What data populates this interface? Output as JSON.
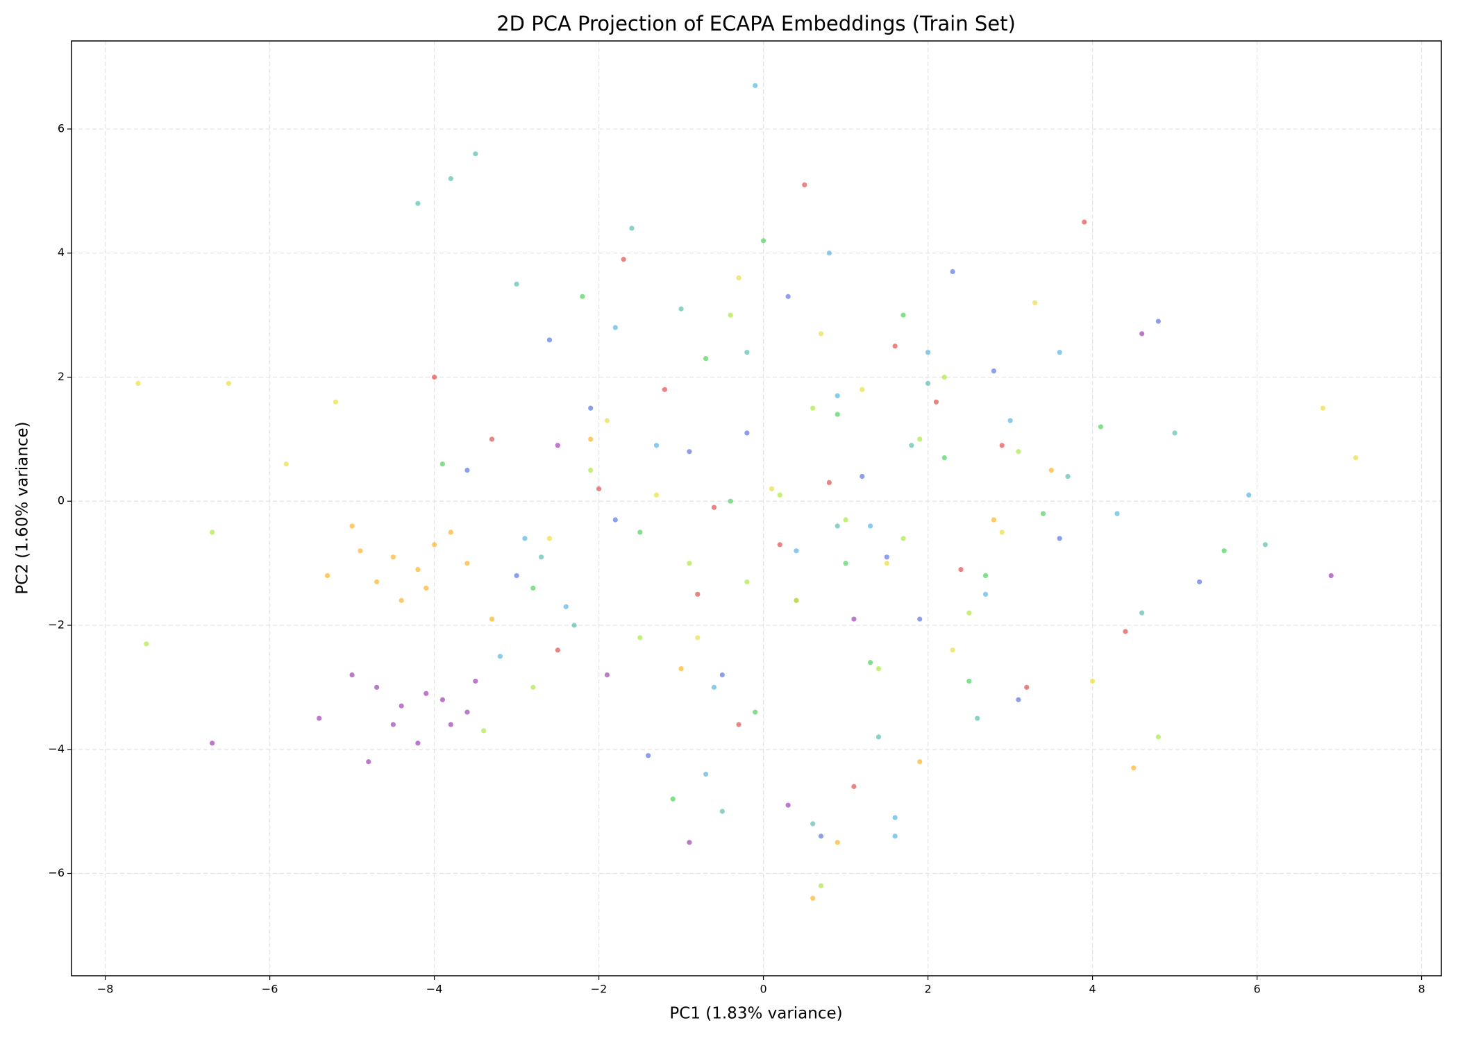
{
  "chart_data": {
    "type": "scatter",
    "title": "2D PCA Projection of ECAPA Embeddings (Train Set)",
    "x_label": "PC1 (1.83% variance)",
    "y_label": "PC2 (1.60% variance)",
    "xlim": [
      -8.41,
      8.24
    ],
    "ylim": [
      -7.65,
      7.42
    ],
    "xticks": [
      {
        "value": -8,
        "label": "−8"
      },
      {
        "value": -6,
        "label": "−6"
      },
      {
        "value": -4,
        "label": "−4"
      },
      {
        "value": -2,
        "label": "−2"
      },
      0,
      2,
      4,
      6,
      8
    ],
    "yticks": [
      {
        "value": -6,
        "label": "−6"
      },
      {
        "value": -4,
        "label": "−4"
      },
      {
        "value": -2,
        "label": "−2"
      },
      0,
      2,
      4,
      6
    ],
    "grid": true,
    "series": [
      {
        "color": "#3f5fe0",
        "x": [
          -2.1,
          -0.5,
          1.2,
          2.8,
          -3.0,
          0.3,
          -1.4,
          3.6,
          4.8,
          -0.9,
          1.9,
          -2.6,
          0.7,
          5.3,
          -1.8,
          2.3,
          -0.2,
          3.1,
          -3.6,
          1.5
        ],
        "y": [
          1.5,
          -2.8,
          0.4,
          2.1,
          -1.2,
          3.3,
          -4.1,
          -0.6,
          2.9,
          0.8,
          -1.9,
          2.6,
          -5.4,
          -1.3,
          -0.3,
          3.7,
          1.1,
          -3.2,
          0.5,
          -0.9
        ]
      },
      {
        "color": "#e03030",
        "x": [
          0.8,
          -1.2,
          2.4,
          -2.5,
          3.9,
          -0.3,
          1.6,
          -3.3,
          0.2,
          2.9,
          -1.7,
          4.4,
          -0.8,
          1.1,
          3.2,
          -2.0,
          0.5,
          -4.0,
          2.1,
          -0.6
        ],
        "y": [
          0.3,
          1.8,
          -1.1,
          -2.4,
          4.5,
          -3.6,
          2.5,
          1.0,
          -0.7,
          0.9,
          3.9,
          -2.1,
          -1.5,
          -4.6,
          -3.0,
          0.2,
          5.1,
          2.0,
          1.6,
          -0.1
        ]
      },
      {
        "color": "#2ecc40",
        "x": [
          -1.5,
          0.4,
          2.2,
          -0.7,
          1.3,
          3.4,
          -2.8,
          0.9,
          -0.1,
          2.7,
          -3.9,
          1.7,
          4.1,
          -1.1,
          0.0,
          2.5,
          -2.2,
          5.6,
          -0.4,
          1.0
        ],
        "y": [
          -0.5,
          -1.6,
          0.7,
          2.3,
          -2.6,
          -0.2,
          -1.4,
          1.4,
          -3.4,
          -1.2,
          0.6,
          3.0,
          1.2,
          -4.8,
          4.2,
          -2.9,
          3.3,
          -0.8,
          0.0,
          -1.0
        ]
      },
      {
        "color": "#3cb4a0",
        "x": [
          -3.8,
          -4.2,
          -3.5,
          -1.0,
          0.6,
          2.0,
          -2.3,
          3.7,
          1.4,
          -0.2,
          4.6,
          6.1,
          -1.6,
          0.9,
          2.6,
          -3.0,
          -0.5,
          5.0,
          1.8,
          -2.7
        ],
        "y": [
          5.2,
          4.8,
          5.6,
          3.1,
          -5.2,
          1.9,
          -2.0,
          0.4,
          -3.8,
          2.4,
          -1.8,
          -0.7,
          4.4,
          -0.4,
          -3.5,
          3.5,
          -5.0,
          1.1,
          0.9,
          -0.9
        ]
      },
      {
        "color": "#e6d820",
        "x": [
          -6.5,
          -5.8,
          -7.6,
          0.1,
          1.5,
          -1.9,
          2.9,
          -0.8,
          0.7,
          3.3,
          6.8,
          7.2,
          -5.2,
          1.2,
          -2.6,
          2.3,
          -0.3,
          4.0,
          -1.3,
          0.4
        ],
        "y": [
          1.9,
          0.6,
          1.9,
          0.2,
          -1.0,
          1.3,
          -0.5,
          -2.2,
          2.7,
          3.2,
          1.5,
          0.7,
          1.6,
          1.8,
          -0.6,
          -2.4,
          3.6,
          -2.9,
          0.1,
          -1.6
        ]
      },
      {
        "color": "#ffa500",
        "x": [
          -4.5,
          -4.2,
          -4.0,
          -4.7,
          -3.8,
          -4.4,
          -5.0,
          -3.6,
          -4.1,
          -4.9,
          -3.3,
          -5.3,
          0.6,
          1.9,
          -1.0,
          2.8,
          3.5,
          -2.1,
          4.5,
          0.9
        ],
        "y": [
          -0.9,
          -1.1,
          -0.7,
          -1.3,
          -0.5,
          -1.6,
          -0.4,
          -1.0,
          -1.4,
          -0.8,
          -1.9,
          -1.2,
          -6.4,
          -4.2,
          -2.7,
          -0.3,
          0.5,
          1.0,
          -4.3,
          -5.5
        ]
      },
      {
        "color": "#9020a8",
        "x": [
          -4.4,
          -4.1,
          -3.8,
          -4.7,
          -4.2,
          -3.6,
          -5.0,
          -4.5,
          -3.9,
          -5.4,
          -3.5,
          -4.8,
          -6.7,
          -1.9,
          0.3,
          -0.9,
          1.1,
          -2.5,
          4.6,
          6.9
        ],
        "y": [
          -3.3,
          -3.1,
          -3.6,
          -3.0,
          -3.9,
          -3.4,
          -2.8,
          -3.6,
          -3.2,
          -3.5,
          -2.9,
          -4.2,
          -3.9,
          -2.8,
          -4.9,
          -5.5,
          -1.9,
          0.9,
          2.7,
          -1.2
        ]
      },
      {
        "color": "#3aa8e0",
        "x": [
          0.4,
          -1.3,
          2.0,
          -0.6,
          1.6,
          -2.4,
          3.0,
          0.8,
          -3.2,
          4.3,
          -0.1,
          1.3,
          5.9,
          -1.8,
          2.7,
          1.6,
          0.9,
          -2.9,
          3.6,
          -0.7
        ],
        "y": [
          -0.8,
          0.9,
          2.4,
          -3.0,
          -5.4,
          -1.7,
          1.3,
          4.0,
          -2.5,
          -0.2,
          6.7,
          -0.4,
          0.1,
          2.8,
          -1.5,
          -5.1,
          1.7,
          -0.6,
          2.4,
          -4.4
        ]
      },
      {
        "color": "#9be61c",
        "x": [
          0.2,
          -0.9,
          1.7,
          -2.1,
          2.5,
          0.6,
          -1.5,
          3.1,
          -0.2,
          1.0,
          -2.8,
          2.2,
          -0.4,
          1.4,
          -6.7,
          -7.5,
          4.8,
          -3.4,
          0.7,
          1.9
        ],
        "y": [
          0.1,
          -1.0,
          -0.6,
          0.5,
          -1.8,
          1.5,
          -2.2,
          0.8,
          -1.3,
          -0.3,
          -3.0,
          2.0,
          3.0,
          -2.7,
          -0.5,
          -2.3,
          -3.8,
          -3.7,
          -6.2,
          1.0
        ]
      }
    ]
  }
}
